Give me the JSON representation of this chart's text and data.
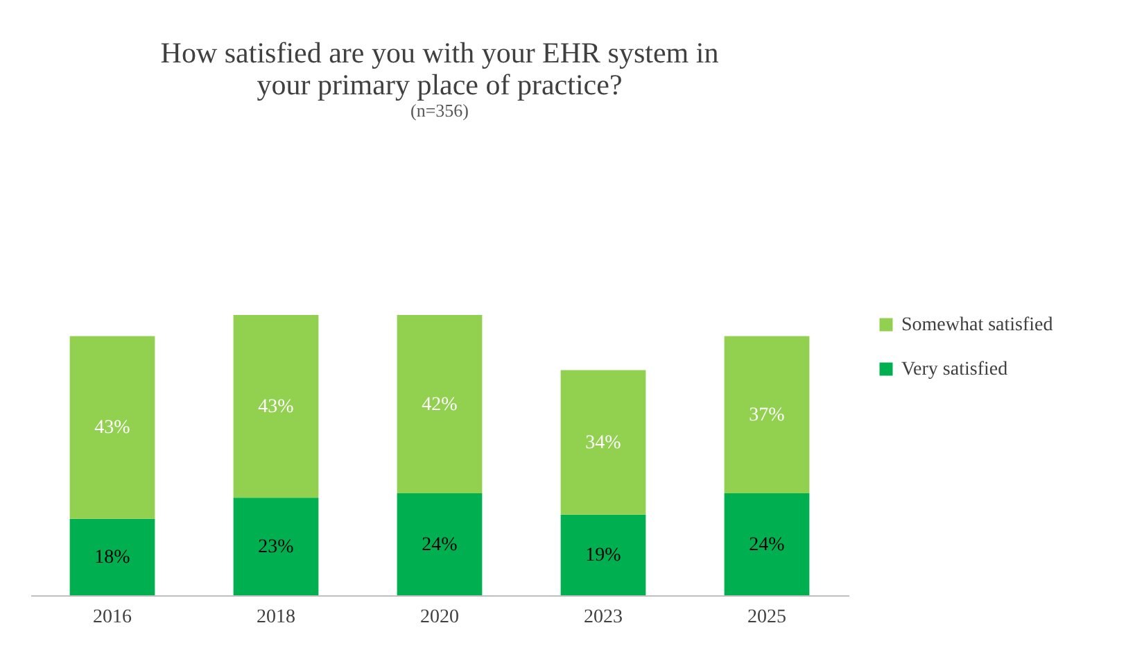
{
  "chart_data": {
    "type": "bar",
    "title": "How satisfied are you with your EHR system in your primary place of practice?",
    "subtitle": "(n=356)",
    "categories": [
      "2016",
      "2018",
      "2020",
      "2023",
      "2025"
    ],
    "stacked": true,
    "series": [
      {
        "name": "Very satisfied",
        "color": "#00b050",
        "values": [
          18,
          23,
          24,
          19,
          24
        ],
        "value_labels": [
          "18%",
          "23%",
          "24%",
          "19%",
          "24%"
        ]
      },
      {
        "name": "Somewhat satisfied",
        "color": "#92d050",
        "values": [
          43,
          43,
          42,
          34,
          37
        ],
        "value_labels": [
          "43%",
          "43%",
          "42%",
          "34%",
          "37%"
        ]
      }
    ],
    "legend": "right",
    "tick_labels": "x"
  }
}
